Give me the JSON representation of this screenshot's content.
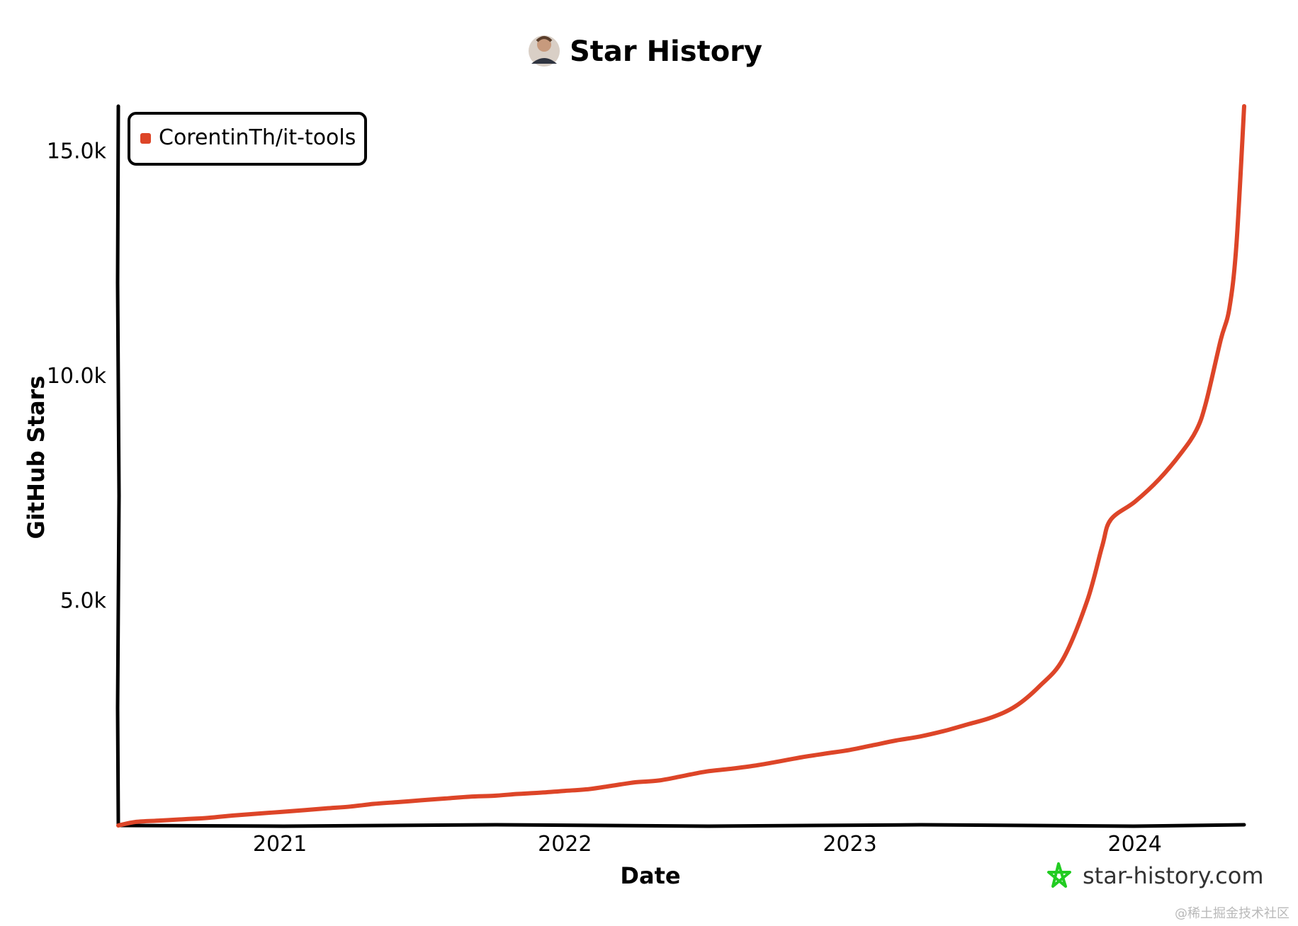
{
  "header": {
    "title": "Star History"
  },
  "colors": {
    "series": "#dd4528",
    "axis": "#000000",
    "brand": "#22cc22"
  },
  "chart_data": {
    "type": "line",
    "title": "Star History",
    "xlabel": "Date",
    "ylabel": "GitHub Stars",
    "x_ticks": [
      "2021",
      "2022",
      "2023",
      "2024"
    ],
    "y_ticks": [
      "5.0k",
      "10.0k",
      "15.0k"
    ],
    "xlim": [
      "2020-06-08",
      "2024-05-20"
    ],
    "ylim": [
      0,
      16000
    ],
    "grid": false,
    "legend_position": "top-left",
    "series": [
      {
        "name": "CorentinTh/it-tools",
        "x": [
          "2020-06-08",
          "2020-07-01",
          "2020-08-01",
          "2020-09-01",
          "2020-10-01",
          "2020-11-01",
          "2020-12-01",
          "2021-01-01",
          "2021-02-01",
          "2021-03-01",
          "2021-04-01",
          "2021-05-01",
          "2021-06-01",
          "2021-07-01",
          "2021-08-01",
          "2021-09-01",
          "2021-10-01",
          "2021-11-01",
          "2021-12-01",
          "2022-01-01",
          "2022-02-01",
          "2022-03-01",
          "2022-04-01",
          "2022-05-01",
          "2022-06-01",
          "2022-07-01",
          "2022-08-01",
          "2022-09-01",
          "2022-10-01",
          "2022-11-01",
          "2022-12-01",
          "2023-01-01",
          "2023-02-01",
          "2023-03-01",
          "2023-04-01",
          "2023-05-01",
          "2023-06-01",
          "2023-07-01",
          "2023-08-01",
          "2023-09-01",
          "2023-10-01",
          "2023-11-01",
          "2023-11-20",
          "2023-12-01",
          "2024-01-01",
          "2024-02-01",
          "2024-03-01",
          "2024-03-20",
          "2024-04-01",
          "2024-04-20",
          "2024-05-01",
          "2024-05-10",
          "2024-05-20"
        ],
        "y": [
          0,
          80,
          110,
          140,
          170,
          220,
          260,
          300,
          340,
          380,
          420,
          480,
          520,
          560,
          600,
          640,
          660,
          700,
          730,
          770,
          810,
          880,
          960,
          1000,
          1100,
          1200,
          1260,
          1330,
          1420,
          1520,
          1600,
          1680,
          1790,
          1890,
          1980,
          2100,
          2250,
          2400,
          2650,
          3100,
          3700,
          5000,
          6200,
          6800,
          7200,
          7700,
          8300,
          8800,
          9400,
          10800,
          11500,
          12900,
          16000
        ]
      }
    ]
  },
  "brand": {
    "text": "star-history.com"
  },
  "watermark": {
    "text": "@稀土掘金技术社区"
  }
}
